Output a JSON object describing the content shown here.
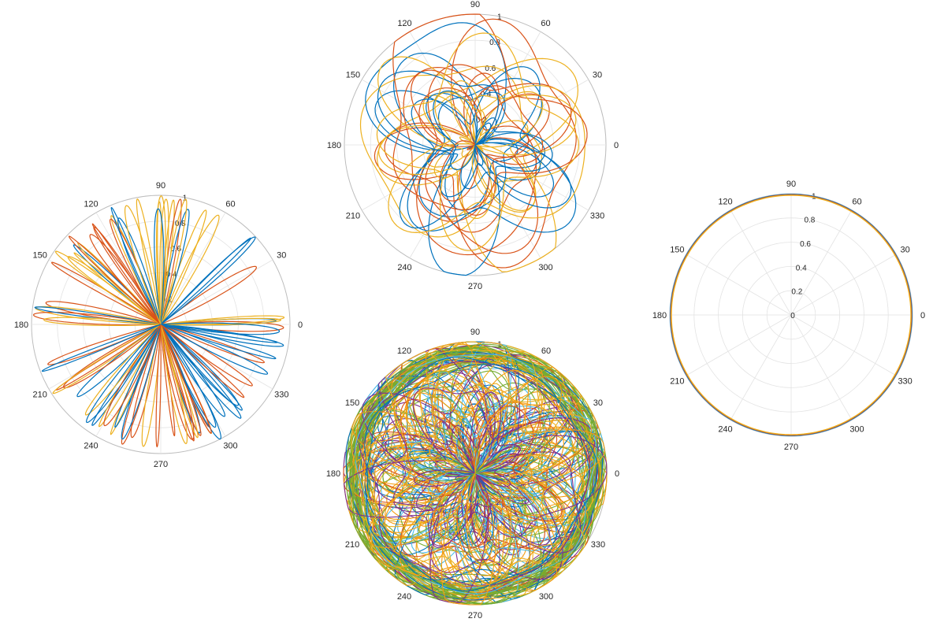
{
  "colors": {
    "grid": "#e3e3e3",
    "outer_ring": "#bdbdbd",
    "tick_text": "#262626",
    "palette": [
      "#0072BD",
      "#D95319",
      "#EDB120",
      "#7E2F8E",
      "#77AC30",
      "#4DBEEE",
      "#A2142F",
      "#F39C12"
    ]
  },
  "chart_data": [
    {
      "type": "line",
      "subtype": "polar",
      "description_key": "rose-petal curves",
      "theta_ticks": [
        "0",
        "30",
        "60",
        "90",
        "120",
        "150",
        "180",
        "210",
        "240",
        "270",
        "300",
        "330"
      ],
      "r_ticks": [
        "0.2",
        "0.4",
        "0.6",
        "0.8",
        "1"
      ],
      "rlim": [
        0,
        1
      ],
      "grid": true,
      "series_colors": [
        "#0072BD",
        "#D95319",
        "#EDB120"
      ],
      "pattern": "petals",
      "petal_count": 80
    },
    {
      "type": "line",
      "subtype": "polar",
      "theta_ticks": [
        "0",
        "30",
        "60",
        "90",
        "120",
        "150",
        "180",
        "210",
        "240",
        "270",
        "300",
        "330"
      ],
      "r_ticks": [
        "0.2",
        "0.4",
        "0.6",
        "0.8",
        "1"
      ],
      "rlim": [
        0,
        1
      ],
      "grid": true,
      "series_colors": [
        "#0072BD",
        "#D95319",
        "#EDB120"
      ],
      "pattern": "blobs",
      "curve_count": 24
    },
    {
      "type": "line",
      "subtype": "polar",
      "theta_ticks": [
        "0",
        "30",
        "60",
        "90",
        "120",
        "150",
        "180",
        "210",
        "240",
        "270",
        "300",
        "330"
      ],
      "r_ticks": [
        "1"
      ],
      "rlim": [
        0,
        1
      ],
      "grid": true,
      "series_colors": [
        "#0072BD",
        "#D95319",
        "#EDB120",
        "#7E2F8E",
        "#77AC30",
        "#4DBEEE",
        "#F39C12"
      ],
      "pattern": "scribble",
      "curve_count": 140
    },
    {
      "type": "line",
      "subtype": "polar",
      "theta_ticks": [
        "0",
        "30",
        "60",
        "90",
        "120",
        "150",
        "180",
        "210",
        "240",
        "270",
        "300",
        "330"
      ],
      "r_ticks": [
        "0",
        "0.2",
        "0.4",
        "0.6",
        "0.8",
        "1"
      ],
      "rlim": [
        0,
        1
      ],
      "grid": true,
      "series_colors": [
        "#0072BD",
        "#D95319",
        "#EDB120"
      ],
      "pattern": "circle",
      "series": [
        {
          "values_r": [
            1,
            1,
            1,
            1,
            1,
            1,
            1,
            1,
            1,
            1,
            1,
            1,
            1
          ]
        }
      ]
    }
  ]
}
